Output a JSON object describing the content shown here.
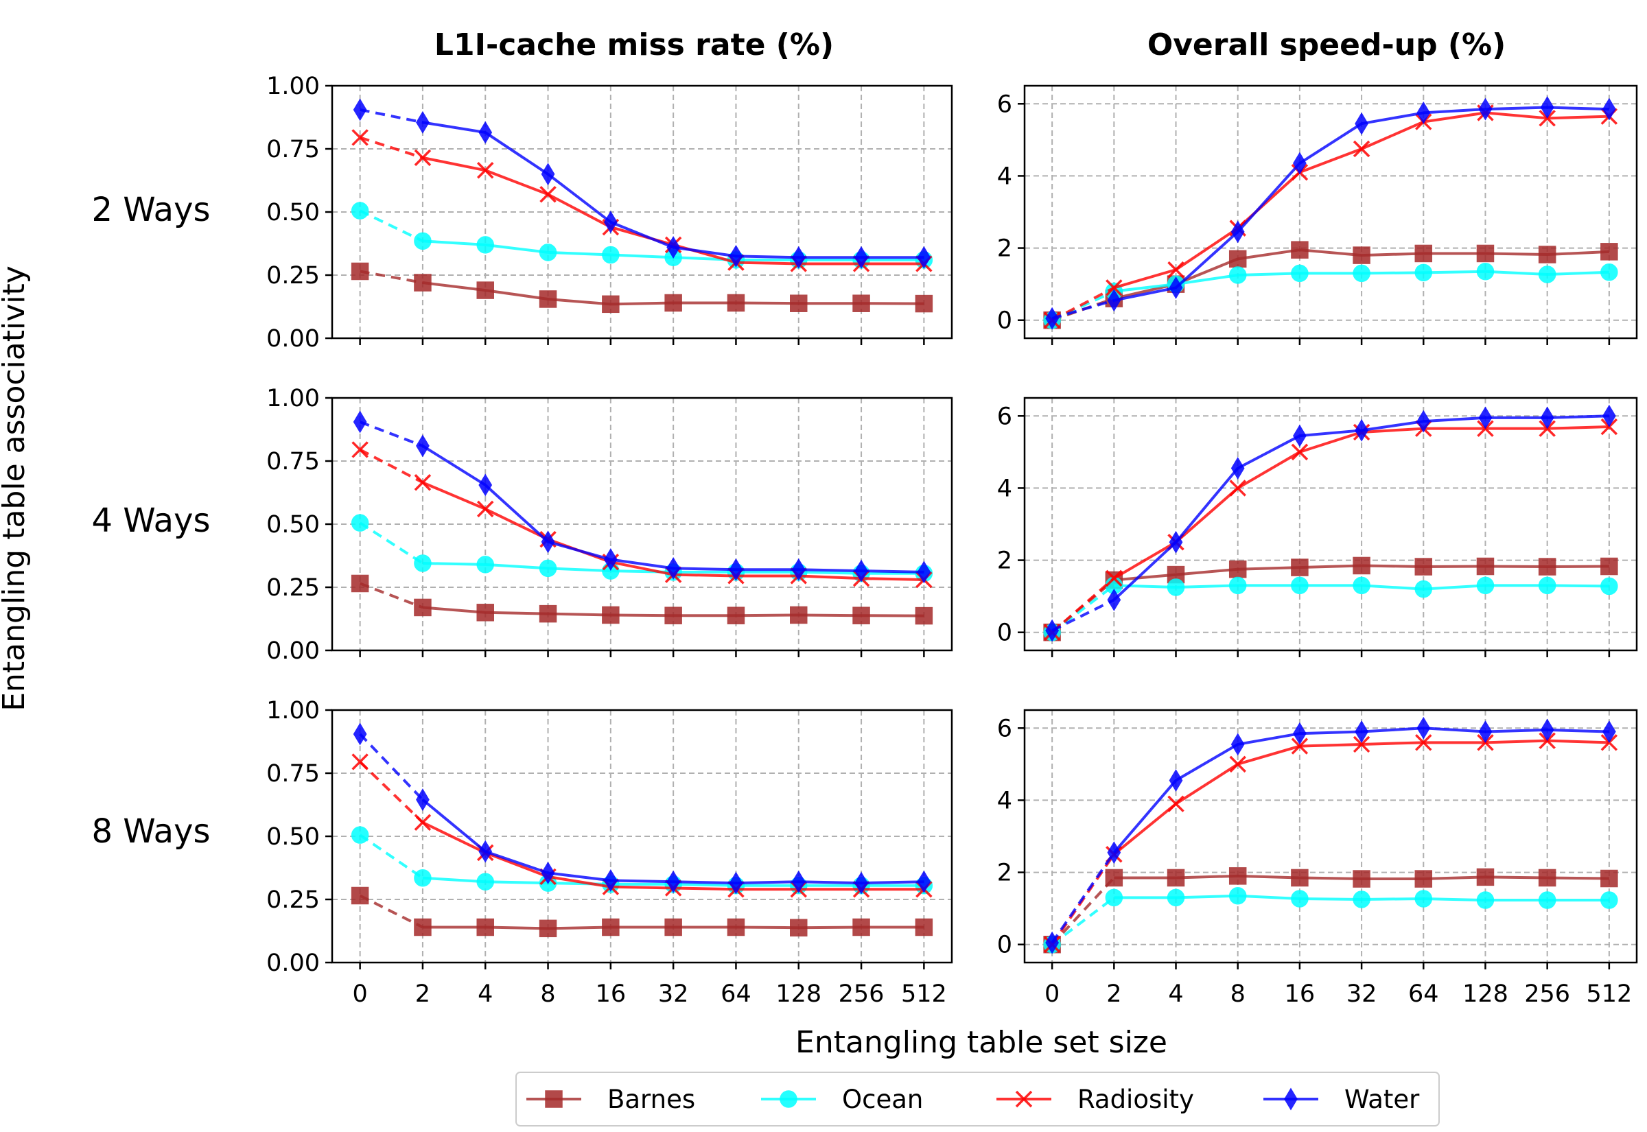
{
  "chart_data": {
    "type": "line",
    "layout": "3 rows x 2 columns of line charts",
    "column_titles": [
      "L1I-cache miss rate (%)",
      "Overall speed-up (%)"
    ],
    "row_labels": [
      "2 Ways",
      "4 Ways",
      "8 Ways"
    ],
    "xlabel": "Entangling table set size",
    "ylabel": "Entangling table associativity",
    "categories": [
      "0",
      "2",
      "4",
      "8",
      "16",
      "32",
      "64",
      "128",
      "256",
      "512"
    ],
    "legend_placement": "bottom-center",
    "grid": true,
    "grid_style": "dashed",
    "note_segments": "segment from 0 to 2 is dashed",
    "series_styles": [
      {
        "name": "Barnes",
        "color": "#a52a2a",
        "marker": "square"
      },
      {
        "name": "Ocean",
        "color": "#00ffff",
        "marker": "circle"
      },
      {
        "name": "Radiosity",
        "color": "#ff0000",
        "marker": "x"
      },
      {
        "name": "Water",
        "color": "#0000ff",
        "marker": "thin-diamond"
      }
    ],
    "panels": [
      {
        "row": "2 Ways",
        "column": "L1I-cache miss rate (%)",
        "ylim": [
          0,
          1.0
        ],
        "yticks": [
          "0.00",
          "0.25",
          "0.50",
          "0.75",
          "1.00"
        ],
        "series": [
          {
            "name": "Barnes",
            "values": [
              0.265,
              0.22,
              0.19,
              0.155,
              0.135,
              0.14,
              0.14,
              0.138,
              0.138,
              0.137
            ]
          },
          {
            "name": "Ocean",
            "values": [
              0.505,
              0.385,
              0.37,
              0.34,
              0.33,
              0.32,
              0.31,
              0.31,
              0.31,
              0.31
            ]
          },
          {
            "name": "Radiosity",
            "values": [
              0.795,
              0.715,
              0.665,
              0.57,
              0.44,
              0.37,
              0.3,
              0.295,
              0.295,
              0.295
            ]
          },
          {
            "name": "Water",
            "values": [
              0.905,
              0.855,
              0.815,
              0.65,
              0.46,
              0.36,
              0.325,
              0.32,
              0.32,
              0.32
            ]
          }
        ]
      },
      {
        "row": "2 Ways",
        "column": "Overall speed-up (%)",
        "ylim": [
          -0.5,
          6.5
        ],
        "yticks": [
          "0",
          "2",
          "4",
          "6"
        ],
        "series": [
          {
            "name": "Barnes",
            "values": [
              0.0,
              0.6,
              1.0,
              1.7,
              1.95,
              1.8,
              1.85,
              1.85,
              1.82,
              1.9
            ]
          },
          {
            "name": "Ocean",
            "values": [
              0.0,
              0.8,
              1.0,
              1.25,
              1.3,
              1.3,
              1.32,
              1.35,
              1.27,
              1.33
            ]
          },
          {
            "name": "Radiosity",
            "values": [
              0.0,
              0.9,
              1.4,
              2.55,
              4.1,
              4.75,
              5.5,
              5.75,
              5.6,
              5.65
            ]
          },
          {
            "name": "Water",
            "values": [
              0.05,
              0.55,
              0.9,
              2.45,
              4.35,
              5.45,
              5.75,
              5.85,
              5.9,
              5.85
            ]
          }
        ]
      },
      {
        "row": "4 Ways",
        "column": "L1I-cache miss rate (%)",
        "ylim": [
          0,
          1.0
        ],
        "yticks": [
          "0.00",
          "0.25",
          "0.50",
          "0.75",
          "1.00"
        ],
        "series": [
          {
            "name": "Barnes",
            "values": [
              0.265,
              0.17,
              0.15,
              0.145,
              0.14,
              0.138,
              0.138,
              0.14,
              0.138,
              0.137
            ]
          },
          {
            "name": "Ocean",
            "values": [
              0.505,
              0.345,
              0.34,
              0.325,
              0.315,
              0.31,
              0.31,
              0.31,
              0.305,
              0.305
            ]
          },
          {
            "name": "Radiosity",
            "values": [
              0.795,
              0.665,
              0.56,
              0.44,
              0.35,
              0.3,
              0.295,
              0.295,
              0.285,
              0.28
            ]
          },
          {
            "name": "Water",
            "values": [
              0.905,
              0.81,
              0.655,
              0.43,
              0.36,
              0.325,
              0.32,
              0.32,
              0.315,
              0.31
            ]
          }
        ]
      },
      {
        "row": "4 Ways",
        "column": "Overall speed-up (%)",
        "ylim": [
          -0.5,
          6.5
        ],
        "yticks": [
          "0",
          "2",
          "4",
          "6"
        ],
        "series": [
          {
            "name": "Barnes",
            "values": [
              0.0,
              1.45,
              1.6,
              1.75,
              1.8,
              1.85,
              1.82,
              1.83,
              1.82,
              1.83
            ]
          },
          {
            "name": "Ocean",
            "values": [
              0.0,
              1.3,
              1.25,
              1.3,
              1.3,
              1.3,
              1.2,
              1.3,
              1.3,
              1.28
            ]
          },
          {
            "name": "Radiosity",
            "values": [
              0.0,
              1.5,
              2.5,
              4.0,
              5.0,
              5.55,
              5.65,
              5.65,
              5.65,
              5.7
            ]
          },
          {
            "name": "Water",
            "values": [
              0.05,
              0.9,
              2.5,
              4.55,
              5.45,
              5.6,
              5.85,
              5.95,
              5.95,
              6.0
            ]
          }
        ]
      },
      {
        "row": "8 Ways",
        "column": "L1I-cache miss rate (%)",
        "ylim": [
          0,
          1.0
        ],
        "yticks": [
          "0.00",
          "0.25",
          "0.50",
          "0.75",
          "1.00"
        ],
        "series": [
          {
            "name": "Barnes",
            "values": [
              0.265,
              0.14,
              0.14,
              0.135,
              0.14,
              0.14,
              0.14,
              0.138,
              0.14,
              0.14
            ]
          },
          {
            "name": "Ocean",
            "values": [
              0.505,
              0.335,
              0.32,
              0.315,
              0.31,
              0.31,
              0.305,
              0.305,
              0.305,
              0.305
            ]
          },
          {
            "name": "Radiosity",
            "values": [
              0.795,
              0.555,
              0.435,
              0.34,
              0.3,
              0.295,
              0.29,
              0.29,
              0.29,
              0.29
            ]
          },
          {
            "name": "Water",
            "values": [
              0.905,
              0.645,
              0.44,
              0.355,
              0.325,
              0.32,
              0.315,
              0.32,
              0.315,
              0.32
            ]
          }
        ]
      },
      {
        "row": "8 Ways",
        "column": "Overall speed-up (%)",
        "ylim": [
          -0.5,
          6.5
        ],
        "yticks": [
          "0",
          "2",
          "4",
          "6"
        ],
        "series": [
          {
            "name": "Barnes",
            "values": [
              0.0,
              1.85,
              1.85,
              1.9,
              1.85,
              1.82,
              1.82,
              1.87,
              1.85,
              1.83
            ]
          },
          {
            "name": "Ocean",
            "values": [
              0.0,
              1.3,
              1.3,
              1.35,
              1.27,
              1.25,
              1.27,
              1.23,
              1.23,
              1.23
            ]
          },
          {
            "name": "Radiosity",
            "values": [
              0.0,
              2.5,
              3.9,
              5.0,
              5.5,
              5.55,
              5.6,
              5.6,
              5.65,
              5.6
            ]
          },
          {
            "name": "Water",
            "values": [
              0.05,
              2.55,
              4.55,
              5.55,
              5.85,
              5.9,
              6.0,
              5.9,
              5.95,
              5.9
            ]
          }
        ]
      }
    ]
  }
}
